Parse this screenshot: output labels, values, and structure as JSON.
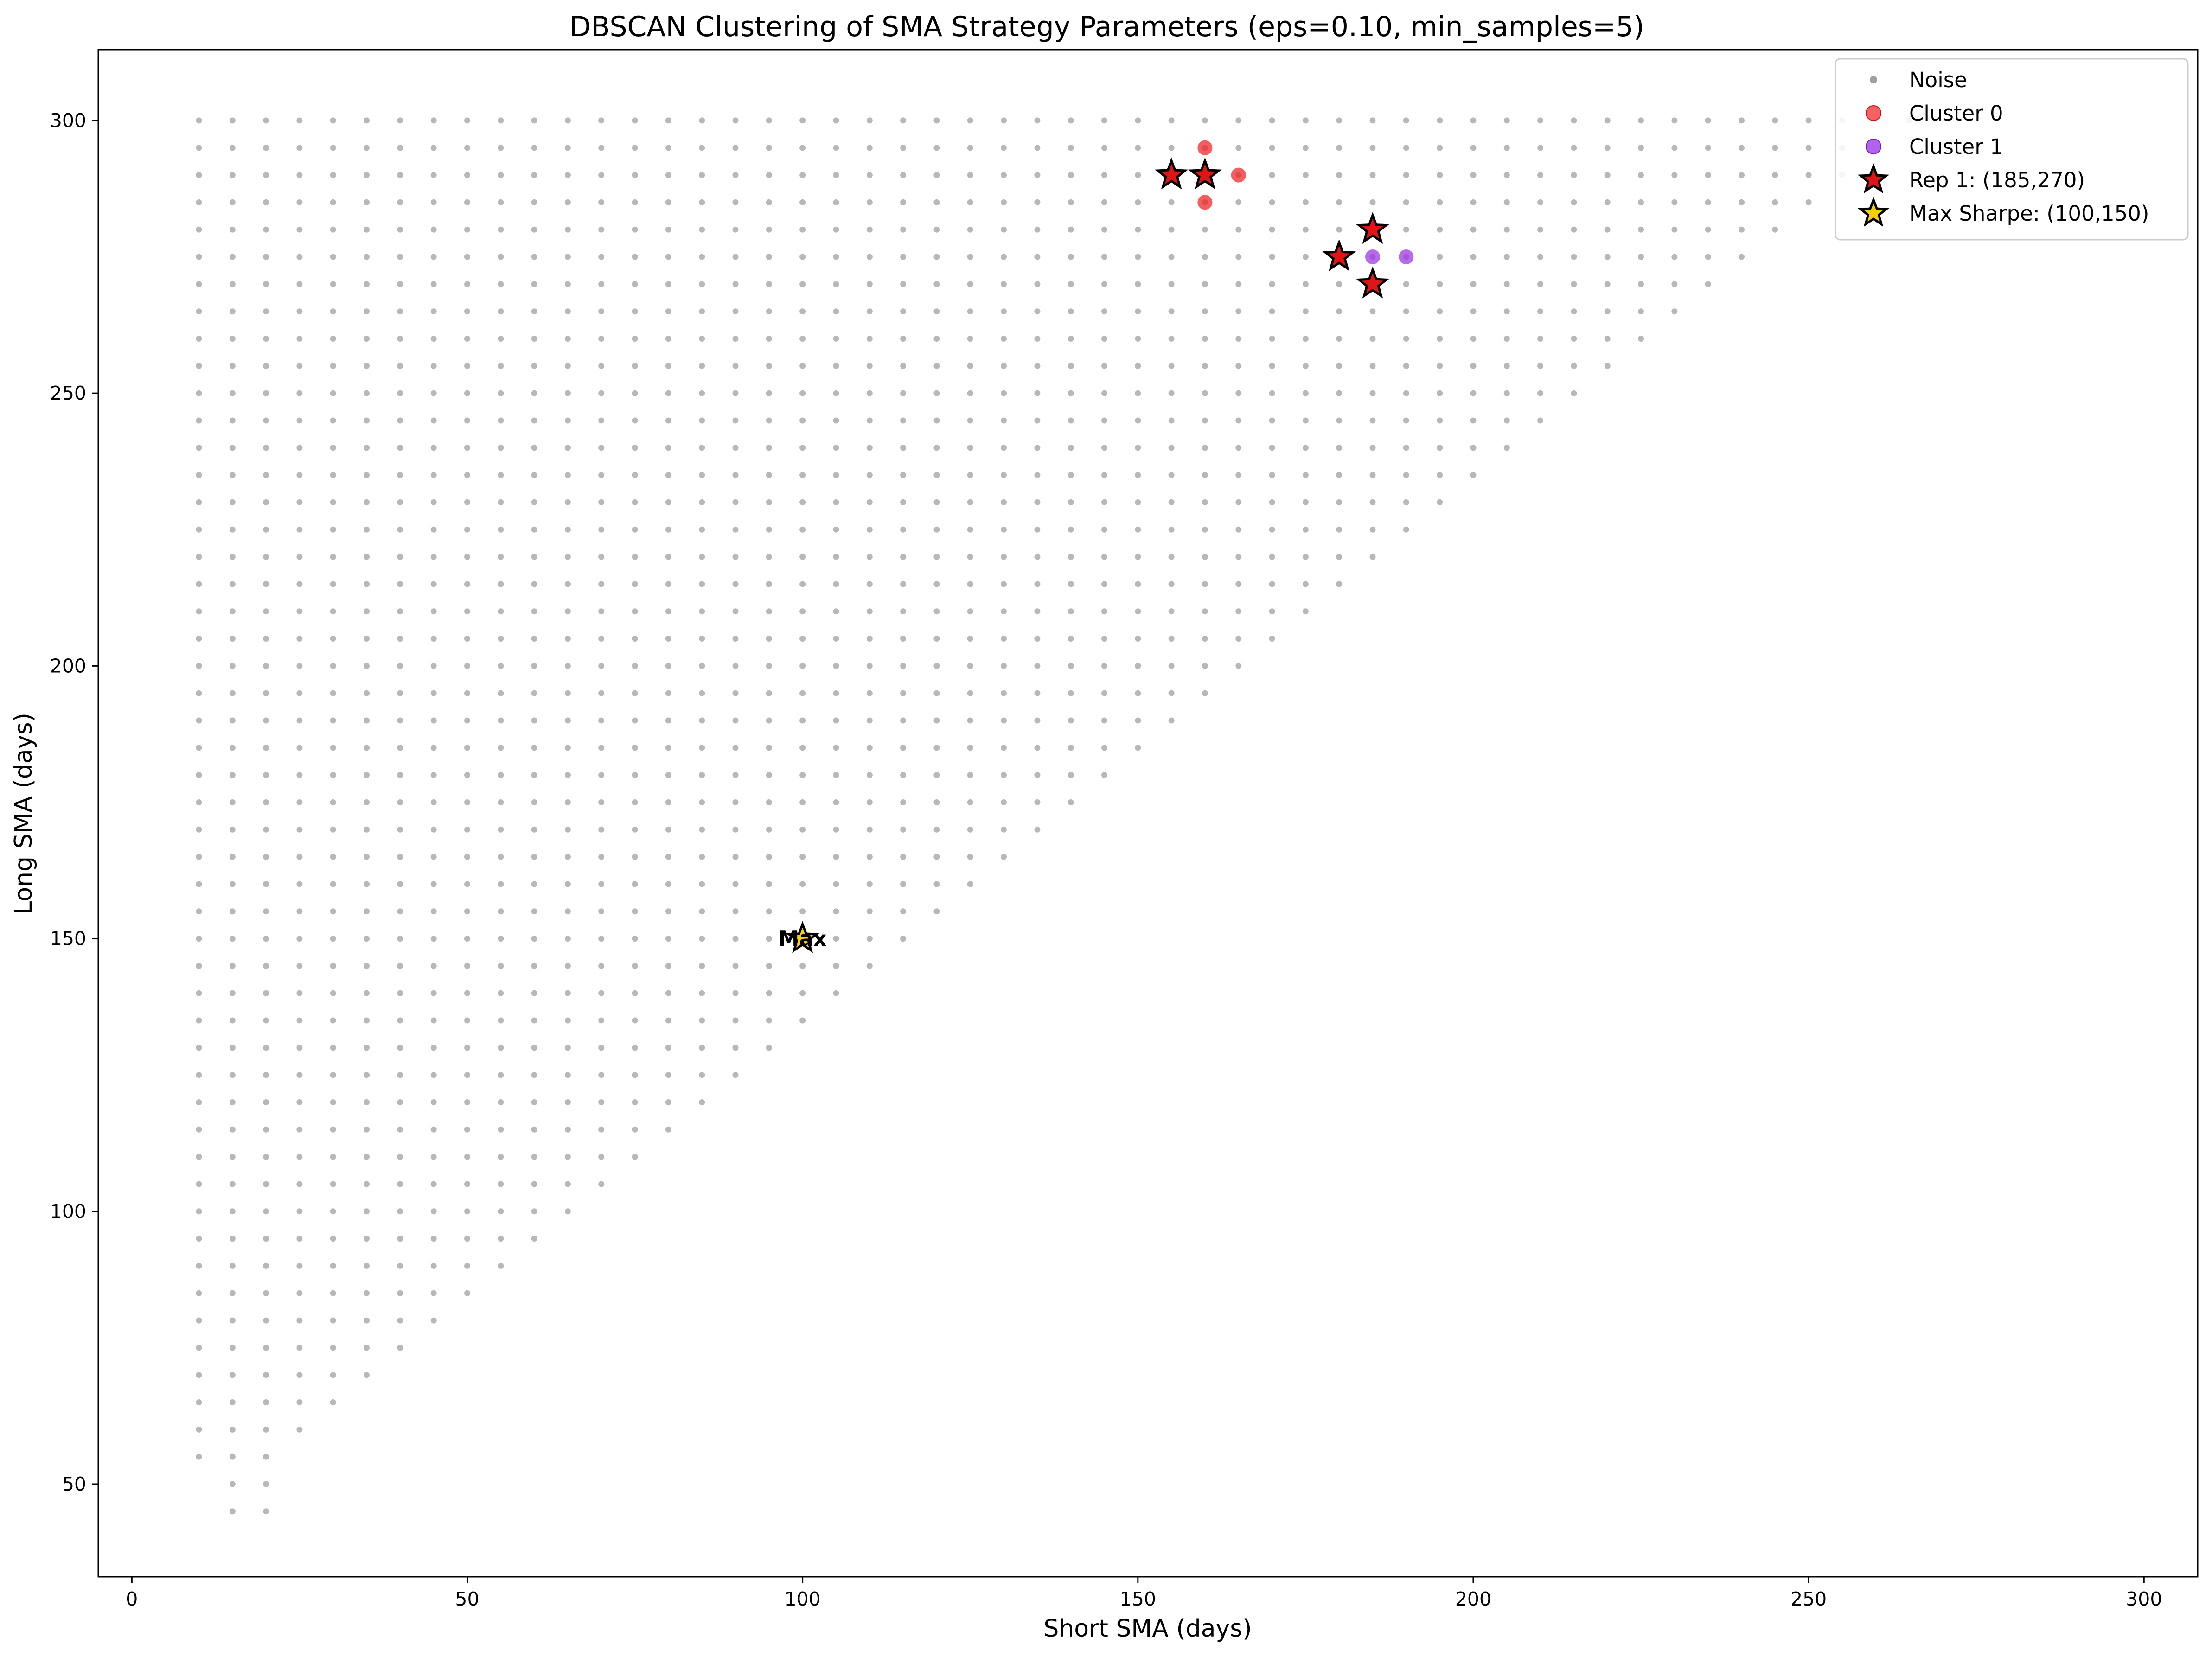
{
  "chart_data": {
    "type": "scatter",
    "title": "DBSCAN Clustering of SMA Strategy Parameters (eps=0.10, min_samples=5)",
    "xlabel": "Short SMA (days)",
    "ylabel": "Long SMA (days)",
    "xlim": [
      -5,
      308
    ],
    "ylim": [
      33,
      313
    ],
    "xticks": [
      0,
      50,
      100,
      150,
      200,
      250,
      300
    ],
    "yticks": [
      50,
      100,
      150,
      200,
      250,
      300
    ],
    "grid": false,
    "legend_position": "top-right",
    "noise_grid": {
      "name": "Noise",
      "color": "#a0a0a0",
      "x_start": 10,
      "x_end": 295,
      "step": 5,
      "y_min_rule": "x + 35 (rounded down to 55 near the origin, 45 at x=15 and x=20)",
      "y_max": 300,
      "rule_note": "grid covers long - short >= 35"
    },
    "series": [
      {
        "name": "Noise",
        "color": "#a0a0a0",
        "marker": "small dot"
      },
      {
        "name": "Cluster 0",
        "color": "#f02020",
        "points": [
          [
            155,
            290
          ],
          [
            160,
            295
          ],
          [
            160,
            290
          ],
          [
            160,
            285
          ],
          [
            165,
            290
          ]
        ]
      },
      {
        "name": "Cluster 1",
        "color": "#9b30e6",
        "points": [
          [
            180,
            275
          ],
          [
            185,
            280
          ],
          [
            185,
            275
          ],
          [
            185,
            270
          ],
          [
            190,
            275
          ]
        ]
      },
      {
        "name": "Rep 1: (185,270)",
        "color": "#e01515",
        "marker": "star",
        "points": [
          [
            155,
            290
          ],
          [
            160,
            290
          ],
          [
            185,
            280
          ],
          [
            180,
            275
          ],
          [
            185,
            270
          ]
        ]
      },
      {
        "name": "Max Sharpe: (100,150)",
        "color": "#f6d000",
        "marker": "star",
        "points": [
          [
            100,
            150
          ]
        ]
      }
    ],
    "annotations": [
      {
        "text": "Max",
        "x": 100,
        "y": 150
      }
    ]
  }
}
